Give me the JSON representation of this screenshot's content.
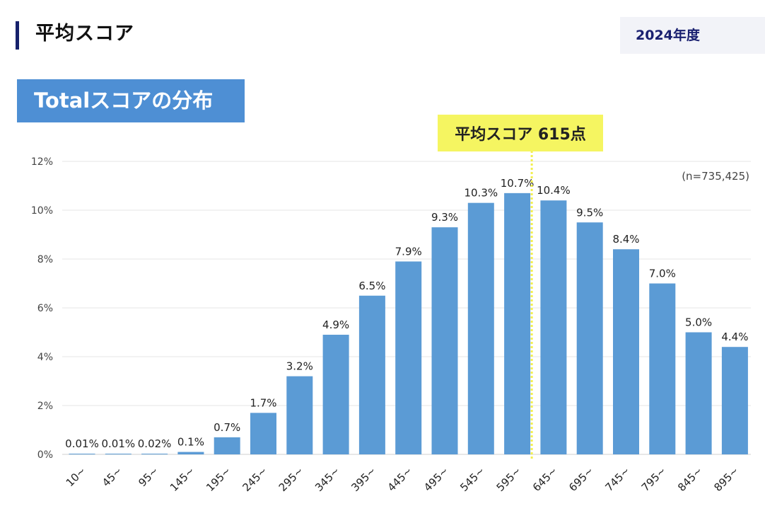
{
  "page": {
    "title": "平均スコア",
    "year": "2024年度"
  },
  "chart_data": {
    "type": "bar",
    "title": "Totalスコアの分布",
    "annotation": "平均スコア 615点",
    "mean_score": 615,
    "sample_label": "(n=735,425)",
    "categories": [
      "10~",
      "45~",
      "95~",
      "145~",
      "195~",
      "245~",
      "295~",
      "345~",
      "395~",
      "445~",
      "495~",
      "545~",
      "595~",
      "645~",
      "695~",
      "745~",
      "795~",
      "845~",
      "895~"
    ],
    "values": [
      0.01,
      0.01,
      0.02,
      0.1,
      0.7,
      1.7,
      3.2,
      4.9,
      6.5,
      7.9,
      9.3,
      10.3,
      10.7,
      10.4,
      9.5,
      8.4,
      7.0,
      5.0,
      4.4
    ],
    "value_labels": [
      "0.01%",
      "0.01%",
      "0.02%",
      "0.1%",
      "0.7%",
      "1.7%",
      "3.2%",
      "4.9%",
      "6.5%",
      "7.9%",
      "9.3%",
      "10.3%",
      "10.7%",
      "10.4%",
      "9.5%",
      "8.4%",
      "7.0%",
      "5.0%",
      "4.4%"
    ],
    "yticks": [
      "0%",
      "2%",
      "4%",
      "6%",
      "8%",
      "10%",
      "12%"
    ],
    "ylim": [
      0,
      12
    ],
    "xlabel": "",
    "ylabel": "",
    "grid": true,
    "bar_color": "#5b9bd5",
    "mean_line_color": "#f2ef4e",
    "annotation_bg": "#f5f561"
  }
}
